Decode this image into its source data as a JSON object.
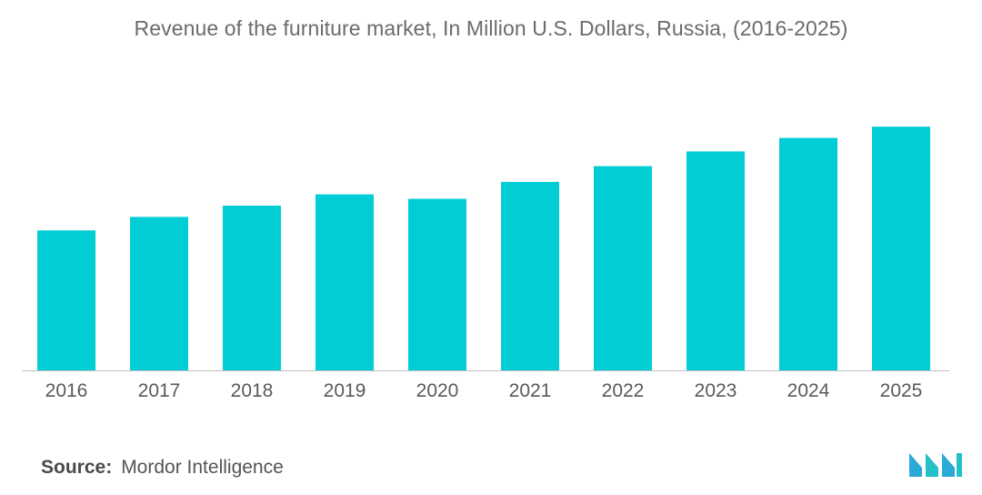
{
  "title": "Revenue of the furniture market, In Million U.S. Dollars, Russia, (2016-2025)",
  "source": {
    "label": "Source:",
    "value": "Mordor Intelligence"
  },
  "colors": {
    "bar": "#00cdd4",
    "baseline": "#bfbfbf",
    "logo": "#2ba9d8"
  },
  "chart_data": {
    "type": "bar",
    "title": "Revenue of the furniture market, In Million U.S. Dollars, Russia, (2016-2025)",
    "categories": [
      "2016",
      "2017",
      "2018",
      "2019",
      "2020",
      "2021",
      "2022",
      "2023",
      "2024",
      "2025"
    ],
    "values": [
      124,
      136,
      146,
      156,
      152,
      167,
      181,
      194,
      206,
      216
    ],
    "xlabel": "",
    "ylabel": "",
    "ylim": [
      0,
      250
    ],
    "grid": false,
    "legend": "none"
  }
}
